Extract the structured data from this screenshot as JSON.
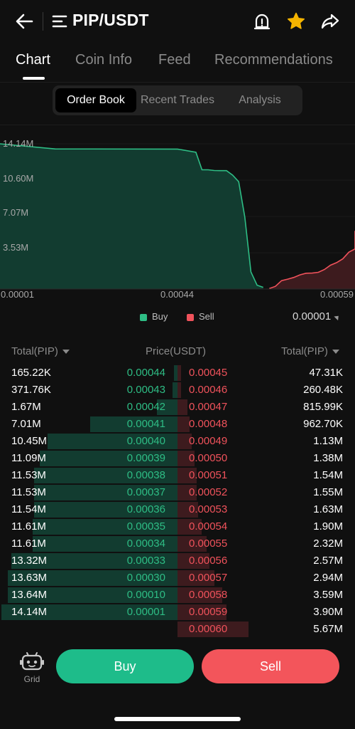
{
  "header": {
    "title": "PIP/USDT",
    "icons": {
      "back": "arrow-left-icon",
      "menu": "menu-lines-icon",
      "alarm": "price-alert-icon",
      "favorite": "star-icon",
      "share": "share-icon"
    },
    "favorite_color": "#f5b400"
  },
  "tabs": [
    {
      "label": "Chart",
      "active": true
    },
    {
      "label": "Coin Info",
      "active": false
    },
    {
      "label": "Feed",
      "active": false
    },
    {
      "label": "Recommendations",
      "active": false
    }
  ],
  "segments": [
    {
      "label": "Order Book",
      "active": true
    },
    {
      "label": "Recent Trades",
      "active": false
    },
    {
      "label": "Analysis",
      "active": false
    }
  ],
  "depth_chart": {
    "y_ticks": [
      "14.14M",
      "10.60M",
      "7.07M",
      "3.53M"
    ],
    "x_ticks": [
      "0.00001",
      "0.00044",
      "0.00059"
    ],
    "legend": {
      "buy": "Buy",
      "sell": "Sell"
    },
    "step": "0.00001",
    "colors": {
      "buy": "#2ebd85",
      "sell": "#f0525b"
    }
  },
  "chart_data": {
    "type": "area",
    "ylim": [
      0,
      14140000
    ],
    "series": [
      {
        "name": "Buy",
        "x": [
          1e-05,
          0.0001,
          0.0003,
          0.00033,
          0.00034,
          0.00035,
          0.00036,
          0.00037,
          0.00038,
          0.00039,
          0.0004,
          0.00041,
          0.00042,
          0.00043,
          0.00044
        ],
        "y": [
          14140000,
          13640000,
          13630000,
          13320000,
          11610000,
          11610000,
          11540000,
          11530000,
          11530000,
          11090000,
          10450000,
          7010000,
          1670000,
          371760,
          165220
        ]
      },
      {
        "name": "Sell",
        "x": [
          0.00045,
          0.00046,
          0.00047,
          0.00048,
          0.00049,
          0.0005,
          0.00051,
          0.00052,
          0.00053,
          0.00054,
          0.00055,
          0.00056,
          0.00057,
          0.00058,
          0.00059,
          0.0006
        ],
        "y": [
          47310,
          260480,
          815990,
          962700,
          1130000,
          1380000,
          1540000,
          1550000,
          1630000,
          1900000,
          2320000,
          2570000,
          2940000,
          3590000,
          3900000,
          5670000
        ]
      }
    ]
  },
  "order_book": {
    "headers": {
      "left": "Total(PIP)",
      "middle": "Price(USDT)",
      "right": "Total(PIP)"
    },
    "bids": [
      {
        "total": "165.22K",
        "price": "0.00044",
        "depth": 0.0117
      },
      {
        "total": "371.76K",
        "price": "0.00043",
        "depth": 0.0263
      },
      {
        "total": "1.67M",
        "price": "0.00042",
        "depth": 0.118
      },
      {
        "total": "7.01M",
        "price": "0.00041",
        "depth": 0.496
      },
      {
        "total": "10.45M",
        "price": "0.00040",
        "depth": 0.739
      },
      {
        "total": "11.09M",
        "price": "0.00039",
        "depth": 0.784
      },
      {
        "total": "11.53M",
        "price": "0.00038",
        "depth": 0.815
      },
      {
        "total": "11.53M",
        "price": "0.00037",
        "depth": 0.815
      },
      {
        "total": "11.54M",
        "price": "0.00036",
        "depth": 0.816
      },
      {
        "total": "11.61M",
        "price": "0.00035",
        "depth": 0.821
      },
      {
        "total": "11.61M",
        "price": "0.00034",
        "depth": 0.821
      },
      {
        "total": "13.32M",
        "price": "0.00033",
        "depth": 0.942
      },
      {
        "total": "13.63M",
        "price": "0.00030",
        "depth": 0.964
      },
      {
        "total": "13.64M",
        "price": "0.00010",
        "depth": 0.965
      },
      {
        "total": "14.14M",
        "price": "0.00001",
        "depth": 1.0
      }
    ],
    "asks": [
      {
        "total": "47.31K",
        "price": "0.00045",
        "depth": 0.0083
      },
      {
        "total": "260.48K",
        "price": "0.00046",
        "depth": 0.0459
      },
      {
        "total": "815.99K",
        "price": "0.00047",
        "depth": 0.144
      },
      {
        "total": "962.70K",
        "price": "0.00048",
        "depth": 0.17
      },
      {
        "total": "1.13M",
        "price": "0.00049",
        "depth": 0.199
      },
      {
        "total": "1.38M",
        "price": "0.00050",
        "depth": 0.243
      },
      {
        "total": "1.54M",
        "price": "0.00051",
        "depth": 0.272
      },
      {
        "total": "1.55M",
        "price": "0.00052",
        "depth": 0.273
      },
      {
        "total": "1.63M",
        "price": "0.00053",
        "depth": 0.287
      },
      {
        "total": "1.90M",
        "price": "0.00054",
        "depth": 0.335
      },
      {
        "total": "2.32M",
        "price": "0.00055",
        "depth": 0.409
      },
      {
        "total": "2.57M",
        "price": "0.00056",
        "depth": 0.453
      },
      {
        "total": "2.94M",
        "price": "0.00057",
        "depth": 0.519
      },
      {
        "total": "3.59M",
        "price": "0.00058",
        "depth": 0.633
      },
      {
        "total": "3.90M",
        "price": "0.00059",
        "depth": 0.688
      },
      {
        "total": "5.67M",
        "price": "0.00060",
        "depth": 1.0
      }
    ]
  },
  "bottom": {
    "grid_label": "Grid",
    "grid_icon": "robot-icon",
    "buy_label": "Buy",
    "sell_label": "Sell",
    "buy_color": "#1ebc8a",
    "sell_color": "#f3555b"
  }
}
